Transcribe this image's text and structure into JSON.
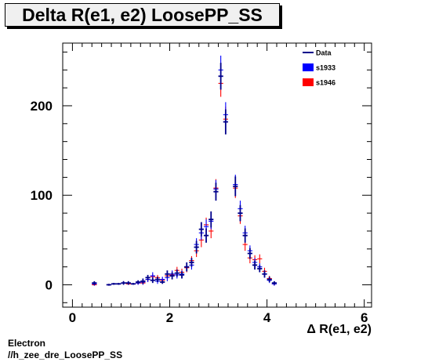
{
  "chart_data": {
    "type": "scatter",
    "title": "Delta R(e1, e2) LoosePP_SS",
    "xlabel": "Δ R(e1, e2)",
    "ylabel": "",
    "xlim": [
      -0.2,
      6.15
    ],
    "ylim": [
      -25,
      270
    ],
    "xticks": [
      "0",
      "2",
      "4",
      "6"
    ],
    "yticks": [
      "0",
      "100",
      "200"
    ],
    "xtick_values": [
      0,
      2,
      4,
      6
    ],
    "ytick_values": [
      0,
      100,
      200
    ],
    "grid": false,
    "legend_position": "top-right",
    "series": [
      {
        "name": "Data",
        "style": "crosses",
        "color": "#00008b",
        "x": [
          0.45,
          0.75,
          0.85,
          0.95,
          1.05,
          1.15,
          1.25,
          1.35,
          1.45,
          1.55,
          1.65,
          1.75,
          1.85,
          1.95,
          2.05,
          2.15,
          2.25,
          2.35,
          2.45,
          2.55,
          2.65,
          2.75,
          2.85,
          2.95,
          3.05,
          3.15,
          3.35,
          3.45,
          3.55,
          3.65,
          3.75,
          3.85,
          3.95,
          4.05,
          4.15
        ],
        "y": [
          2,
          0,
          1,
          1,
          2,
          2,
          1,
          3,
          4,
          8,
          5,
          6,
          3,
          12,
          10,
          13,
          11,
          20,
          25,
          42,
          62,
          55,
          73,
          104,
          233,
          182,
          110,
          80,
          55,
          35,
          22,
          18,
          12,
          6,
          2
        ],
        "yerr": [
          2,
          1,
          1,
          1,
          2,
          2,
          1,
          2,
          3,
          3,
          3,
          3,
          2,
          4,
          4,
          4,
          4,
          5,
          5,
          7,
          8,
          8,
          9,
          10,
          15,
          14,
          11,
          9,
          8,
          6,
          5,
          4,
          4,
          3,
          2
        ]
      },
      {
        "name": "s1933",
        "style": "crosses",
        "color": "#0000ff",
        "x": [
          0.45,
          0.75,
          0.85,
          0.95,
          1.05,
          1.15,
          1.25,
          1.35,
          1.45,
          1.55,
          1.65,
          1.75,
          1.85,
          1.95,
          2.05,
          2.15,
          2.25,
          2.35,
          2.45,
          2.55,
          2.65,
          2.75,
          2.85,
          2.95,
          3.05,
          3.15,
          3.35,
          3.45,
          3.55,
          3.65,
          3.75,
          3.85,
          3.95,
          4.05,
          4.15
        ],
        "y": [
          1,
          0,
          1,
          1,
          2,
          2,
          1,
          2,
          3,
          6,
          10,
          4,
          6,
          8,
          12,
          11,
          12,
          20,
          22,
          45,
          58,
          65,
          71,
          107,
          240,
          190,
          112,
          85,
          58,
          38,
          25,
          20,
          12,
          5,
          1
        ],
        "yerr": [
          2,
          1,
          1,
          1,
          2,
          2,
          1,
          2,
          3,
          3,
          4,
          3,
          3,
          4,
          4,
          4,
          4,
          5,
          5,
          7,
          8,
          8,
          9,
          10,
          16,
          14,
          11,
          9,
          8,
          6,
          5,
          4,
          4,
          3,
          2
        ]
      },
      {
        "name": "s1946",
        "style": "crosses",
        "color": "#ff0000",
        "x": [
          0.45,
          0.75,
          0.85,
          0.95,
          1.05,
          1.15,
          1.25,
          1.35,
          1.45,
          1.55,
          1.65,
          1.75,
          1.85,
          1.95,
          2.05,
          2.15,
          2.25,
          2.35,
          2.45,
          2.55,
          2.65,
          2.75,
          2.85,
          2.95,
          3.05,
          3.15,
          3.35,
          3.45,
          3.55,
          3.65,
          3.75,
          3.85,
          3.95,
          4.05,
          4.15
        ],
        "y": [
          0,
          0,
          1,
          1,
          2,
          1,
          1,
          2,
          2,
          6,
          9,
          8,
          5,
          10,
          11,
          16,
          14,
          19,
          27,
          38,
          50,
          67,
          60,
          108,
          225,
          185,
          108,
          77,
          45,
          30,
          28,
          29,
          15,
          7,
          1
        ],
        "yerr": [
          1,
          1,
          1,
          1,
          2,
          1,
          1,
          2,
          2,
          3,
          3,
          3,
          3,
          4,
          4,
          4,
          4,
          5,
          5,
          7,
          8,
          8,
          8,
          10,
          15,
          14,
          11,
          9,
          7,
          6,
          5,
          5,
          4,
          3,
          2
        ]
      }
    ]
  },
  "footer": {
    "line1": "Electron",
    "line2": "//h_zee_dre_LoosePP_SS"
  }
}
